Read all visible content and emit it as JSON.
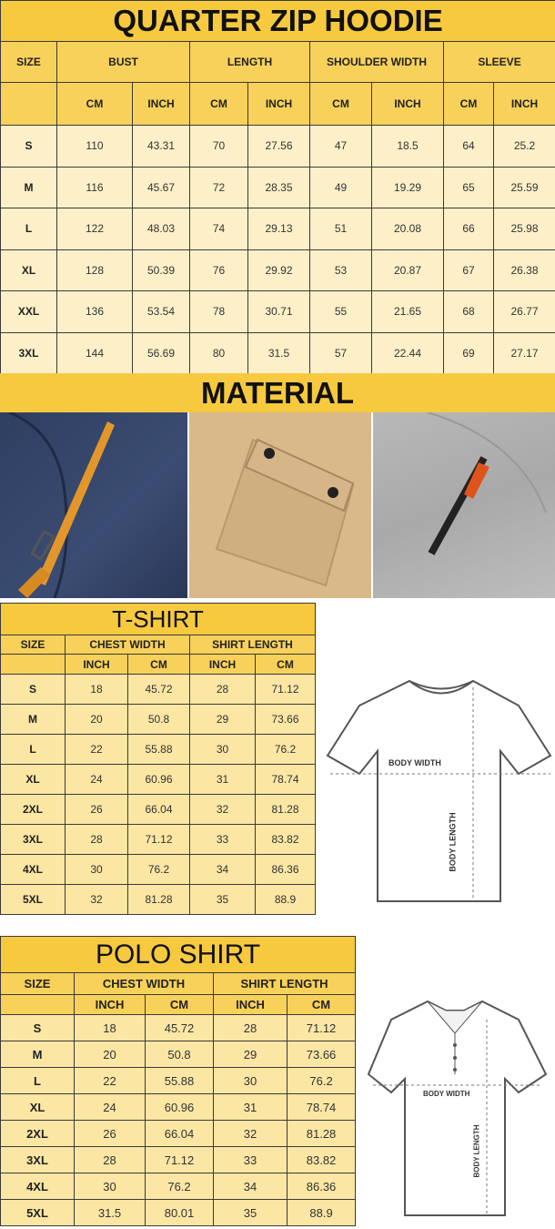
{
  "hoodie": {
    "title": "QUARTER ZIP HOODIE",
    "size_label": "SIZE",
    "groups": [
      "BUST",
      "LENGTH",
      "SHOULDER WIDTH",
      "SLEEVE"
    ],
    "units": [
      "CM",
      "INCH",
      "CM",
      "INCH",
      "CM",
      "INCH",
      "CM",
      "INCH"
    ],
    "rows": [
      [
        "S",
        "110",
        "43.31",
        "70",
        "27.56",
        "47",
        "18.5",
        "64",
        "25.2"
      ],
      [
        "M",
        "116",
        "45.67",
        "72",
        "28.35",
        "49",
        "19.29",
        "65",
        "25.59"
      ],
      [
        "L",
        "122",
        "48.03",
        "74",
        "29.13",
        "51",
        "20.08",
        "66",
        "25.98"
      ],
      [
        "XL",
        "128",
        "50.39",
        "76",
        "29.92",
        "53",
        "20.87",
        "67",
        "26.38"
      ],
      [
        "XXL",
        "136",
        "53.54",
        "78",
        "30.71",
        "55",
        "21.65",
        "68",
        "26.77"
      ],
      [
        "3XL",
        "144",
        "56.69",
        "80",
        "31.5",
        "57",
        "22.44",
        "69",
        "27.17"
      ]
    ]
  },
  "material": {
    "title": "MATERIAL",
    "photos": [
      "navy-fabric-orange-strap",
      "beige-fabric-pocket-flap",
      "gray-fabric-zipper"
    ]
  },
  "tshirt": {
    "title": "T-SHIRT",
    "size_label": "SIZE",
    "groups": [
      "CHEST WIDTH",
      "SHIRT LENGTH"
    ],
    "units": [
      "INCH",
      "CM",
      "INCH",
      "CM"
    ],
    "rows": [
      [
        "S",
        "18",
        "45.72",
        "28",
        "71.12"
      ],
      [
        "M",
        "20",
        "50.8",
        "29",
        "73.66"
      ],
      [
        "L",
        "22",
        "55.88",
        "30",
        "76.2"
      ],
      [
        "XL",
        "24",
        "60.96",
        "31",
        "78.74"
      ],
      [
        "2XL",
        "26",
        "66.04",
        "32",
        "81.28"
      ],
      [
        "3XL",
        "28",
        "71.12",
        "33",
        "83.82"
      ],
      [
        "4XL",
        "30",
        "76.2",
        "34",
        "86.36"
      ],
      [
        "5XL",
        "32",
        "81.28",
        "35",
        "88.9"
      ]
    ],
    "diagram": {
      "width_label": "BODY WIDTH",
      "length_label": "BODY LENGTH"
    }
  },
  "polo": {
    "title": "POLO SHIRT",
    "size_label": "SIZE",
    "groups": [
      "CHEST WIDTH",
      "SHIRT LENGTH"
    ],
    "units": [
      "INCH",
      "CM",
      "INCH",
      "CM"
    ],
    "rows": [
      [
        "S",
        "18",
        "45.72",
        "28",
        "71.12"
      ],
      [
        "M",
        "20",
        "50.8",
        "29",
        "73.66"
      ],
      [
        "L",
        "22",
        "55.88",
        "30",
        "76.2"
      ],
      [
        "XL",
        "24",
        "60.96",
        "31",
        "78.74"
      ],
      [
        "2XL",
        "26",
        "66.04",
        "32",
        "81.28"
      ],
      [
        "3XL",
        "28",
        "71.12",
        "33",
        "83.82"
      ],
      [
        "4XL",
        "30",
        "76.2",
        "34",
        "86.36"
      ],
      [
        "5XL",
        "31.5",
        "80.01",
        "35",
        "88.9"
      ]
    ],
    "diagram": {
      "width_label": "BODY WIDTH",
      "length_label": "BODY LENGTH"
    }
  },
  "colors": {
    "title": "#f6c93f",
    "header": "#f7d15a",
    "cell": "#fdf0c8",
    "border": "#3a3a3a"
  }
}
